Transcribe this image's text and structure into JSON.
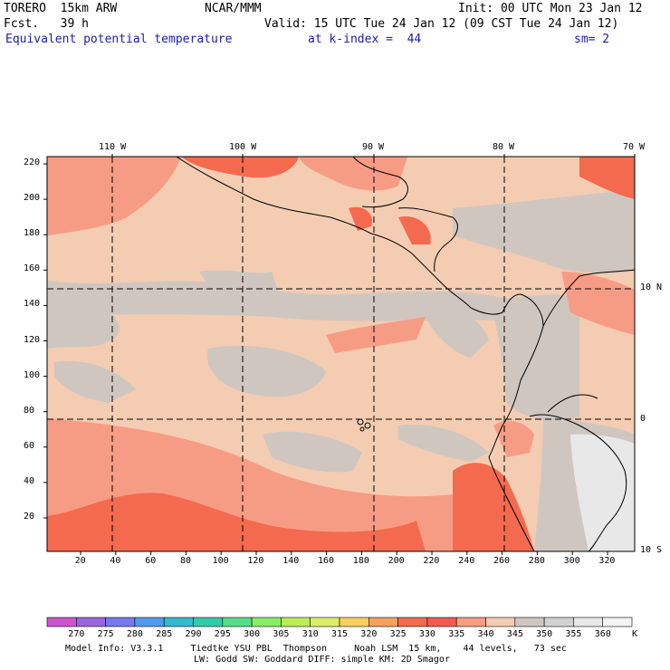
{
  "header": {
    "model": "TORERO  15km ARW",
    "center": "NCAR/MMM",
    "init": "Init: 00 UTC Mon 23 Jan 12",
    "fcst": "Fcst.   39 h",
    "valid": "Valid: 15 UTC Tue 24 Jan 12 (09 CST Tue 24 Jan 12)",
    "field": "Equivalent potential temperature",
    "level": "at k-index =  44",
    "smooth": "sm= 2"
  },
  "map": {
    "lon_labels": [
      "110 W",
      "100 W",
      "90 W",
      "80 W",
      "70 W"
    ],
    "lat_labels": [
      "10 N",
      "0",
      "10 S"
    ],
    "y_ticks": [
      "220",
      "200",
      "180",
      "160",
      "140",
      "120",
      "100",
      "80",
      "60",
      "40",
      "20"
    ],
    "x_ticks": [
      "20",
      "40",
      "60",
      "80",
      "100",
      "120",
      "140",
      "160",
      "180",
      "200",
      "220",
      "240",
      "260",
      "280",
      "300",
      "320"
    ]
  },
  "colorbar": {
    "labels": [
      "270",
      "275",
      "280",
      "285",
      "290",
      "295",
      "300",
      "305",
      "310",
      "315",
      "320",
      "325",
      "330",
      "335",
      "340",
      "345",
      "350",
      "355",
      "360"
    ],
    "unit": "K",
    "colors": [
      "#cc55cc",
      "#9966dd",
      "#7777ee",
      "#5599ee",
      "#33bbcc",
      "#33ccaa",
      "#55dd88",
      "#88ee66",
      "#bbee55",
      "#ddee66",
      "#f7d060",
      "#f7a060",
      "#f46a4e",
      "#f25a52",
      "#f79c84",
      "#f3ccb2",
      "#cfc6c0",
      "#d2d2d2",
      "#e8e8e8",
      "#f4f4f4"
    ]
  },
  "footer": {
    "line1": "Model Info: V3.3.1     Tiedtke YSU PBL  Thompson     Noah LSM  15 km,    44 levels,   73 sec",
    "line2": "LW: Godd SW: Goddard DIFF: simple KM: 2D Smagor"
  }
}
